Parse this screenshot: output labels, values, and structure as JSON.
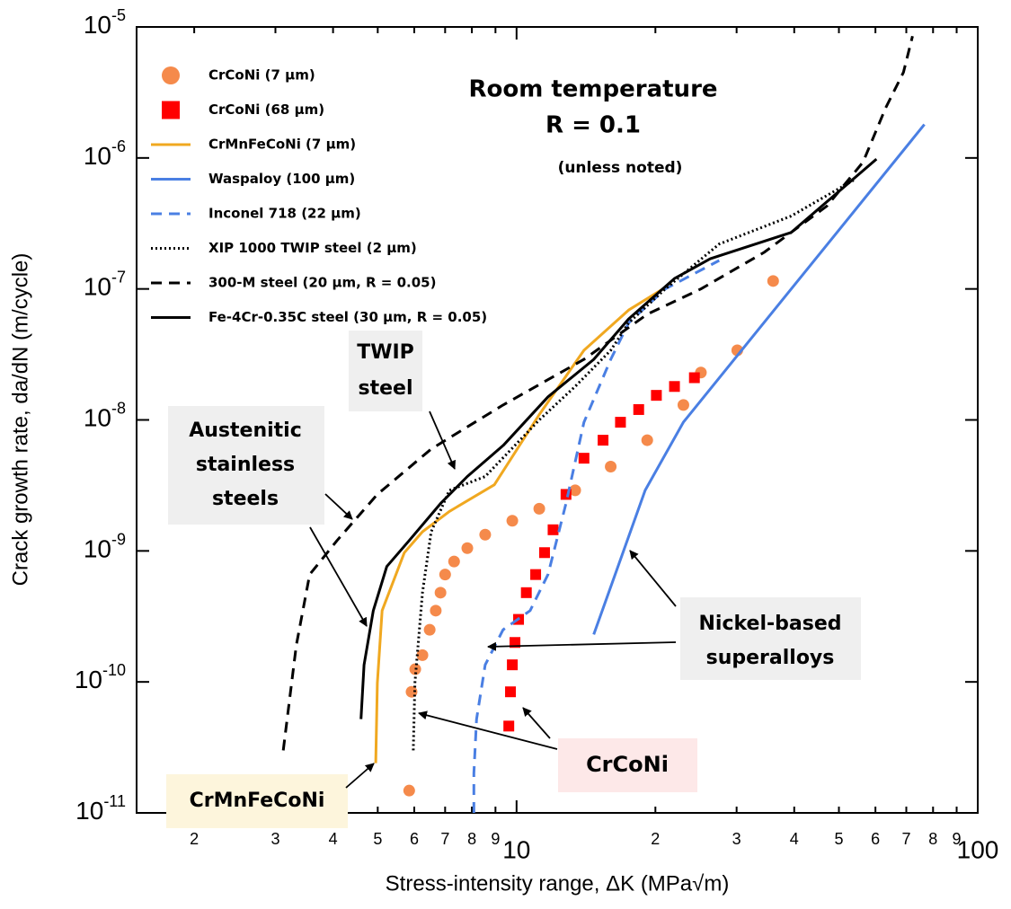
{
  "chart_data": {
    "type": "line",
    "x_label": "Stress-intensity range, ΔK (MPa√m)",
    "y_label": "Crack growth rate, da/dN (m/cycle)",
    "log_x": true,
    "log_y": true,
    "xlim": [
      1.5,
      100
    ],
    "ylim": [
      1e-11,
      1e-05
    ],
    "xticks": [
      2,
      3,
      4,
      5,
      6,
      7,
      8,
      9,
      10,
      {
        "value": 20,
        "label": "2"
      },
      {
        "value": 30,
        "label": "3"
      },
      {
        "value": 40,
        "label": "4"
      },
      {
        "value": 50,
        "label": "5"
      },
      {
        "value": 60,
        "label": "6"
      },
      {
        "value": 70,
        "label": "7"
      },
      {
        "value": 80,
        "label": "8"
      },
      {
        "value": 90,
        "label": "9"
      },
      100
    ],
    "yticks": [
      {
        "value": 1e-11,
        "label": "10",
        "exponent": "-11"
      },
      {
        "value": 1e-10,
        "label": "10",
        "exponent": "-10"
      },
      {
        "value": 1e-09,
        "label": "10",
        "exponent": "-9"
      },
      {
        "value": 1e-08,
        "label": "10",
        "exponent": "-8"
      },
      {
        "value": 1e-07,
        "label": "10",
        "exponent": "-7"
      },
      {
        "value": 1e-06,
        "label": "10",
        "exponent": "-6"
      },
      {
        "value": 1e-05,
        "label": "10",
        "exponent": "-5"
      }
    ],
    "legend": "upper left",
    "series": [
      {
        "name": "CrCoNi (7 µm)",
        "color": "#f58a4b",
        "kind": "scatter",
        "marker": "circle",
        "x": [
          5.85,
          5.92,
          6.03,
          6.25,
          6.48,
          6.68,
          6.84,
          7.0,
          7.32,
          7.82,
          8.55,
          9.79,
          11.2,
          13.4,
          16.0,
          19.2,
          23.0,
          25.1,
          30.1,
          36.0
        ],
        "values": [
          1.48e-11,
          8.4e-11,
          1.25e-10,
          1.6e-10,
          2.5e-10,
          3.5e-10,
          4.8e-10,
          6.6e-10,
          8.3e-10,
          1.05e-09,
          1.33e-09,
          1.7e-09,
          2.1e-09,
          2.9e-09,
          4.4e-09,
          7e-09,
          1.3e-08,
          2.3e-08,
          3.4e-08,
          1.15e-07
        ]
      },
      {
        "name": "CrCoNi (68 µm)",
        "color": "#ff0000",
        "kind": "scatter",
        "marker": "square",
        "x": [
          9.62,
          9.7,
          9.79,
          9.92,
          10.1,
          10.5,
          11.0,
          11.5,
          12.0,
          12.8,
          14.0,
          15.4,
          16.8,
          18.4,
          20.1,
          22.0,
          24.3
        ],
        "values": [
          4.6e-11,
          8.4e-11,
          1.35e-10,
          2e-10,
          3e-10,
          4.8e-10,
          6.6e-10,
          9.7e-10,
          1.45e-09,
          2.7e-09,
          5.1e-09,
          7e-09,
          9.6e-09,
          1.2e-08,
          1.54e-08,
          1.8e-08,
          2.1e-08
        ]
      },
      {
        "name": "CrMnFeCoNi (7 µm)",
        "color": "#f0a820",
        "kind": "line",
        "dash": "solid",
        "x": [
          4.95,
          4.99,
          5.11,
          5.71,
          6.25,
          7.15,
          8.95,
          11.2,
          14.0,
          17.5,
          21.7
        ],
        "values": [
          2.4e-11,
          9.8e-11,
          3.5e-10,
          9.7e-10,
          1.4e-09,
          2e-09,
          3.2e-09,
          1.1e-08,
          3.4e-08,
          6.9e-08,
          1.1e-07
        ]
      },
      {
        "name": "Waspaloy (100 µm)",
        "color": "#4a7fe3",
        "kind": "line",
        "dash": "solid",
        "x": [
          14.7,
          19.0,
          23.0,
          76.6
        ],
        "values": [
          2.3e-10,
          2.9e-09,
          9.6e-09,
          1.8e-06
        ]
      },
      {
        "name": "Inconel 718 (22 µm)",
        "color": "#4a7fe3",
        "kind": "line",
        "dash": "dashed",
        "x": [
          8.08,
          8.08,
          8.19,
          8.55,
          9.35,
          10.7,
          11.7,
          12.8,
          14.0,
          16.0,
          17.5,
          21.0,
          27.5
        ],
        "values": [
          1e-11,
          2e-11,
          5.2e-11,
          1.35e-10,
          2.5e-10,
          3.5e-10,
          6.6e-10,
          2.3e-09,
          9.6e-09,
          2.9e-08,
          5.5e-08,
          1e-07,
          1.65e-07
        ]
      },
      {
        "name": "XIP 1000 TWIP steel (2 µm)",
        "color": "#000000",
        "kind": "line",
        "dash": "dotted",
        "x": [
          5.97,
          6.02,
          6.25,
          6.53,
          7.15,
          8.55,
          11.2,
          13.4,
          16.0,
          17.5,
          21.0,
          27.5,
          39.4,
          53.9
        ],
        "values": [
          3e-11,
          9.8e-11,
          4.8e-10,
          1.4e-09,
          2.9e-09,
          3.7e-09,
          1e-08,
          1.8e-08,
          3.4e-08,
          5.5e-08,
          1e-07,
          2.2e-07,
          3.6e-07,
          6.8e-07
        ]
      },
      {
        "name": "300-M steel (20 µm, R = 0.05)",
        "color": "#000000",
        "kind": "line",
        "dash": "dashed",
        "x": [
          3.12,
          3.33,
          3.56,
          4.08,
          4.99,
          6.53,
          9.35,
          14.0,
          19.2,
          25.1,
          34.4,
          47.1,
          56.4,
          63.1,
          69.0,
          72.2
        ],
        "values": [
          3e-11,
          1.9e-10,
          6.6e-10,
          1.2e-09,
          2.7e-09,
          6e-09,
          1.3e-08,
          2.9e-08,
          6.4e-08,
          1e-07,
          1.9e-07,
          4.3e-07,
          9.3e-07,
          2.4e-06,
          4.5e-06,
          8.5e-06
        ]
      },
      {
        "name": "Fe-4Cr-0.35C steel (30 µm, R = 0.05)",
        "color": "#000000",
        "kind": "line",
        "dash": "solid",
        "x": [
          4.6,
          4.67,
          4.89,
          5.23,
          5.85,
          6.84,
          7.82,
          9.36,
          11.7,
          14.7,
          17.5,
          22.0,
          26.3,
          39.4,
          60.3
        ],
        "values": [
          5.2e-11,
          1.35e-10,
          3.5e-10,
          7.6e-10,
          1.2e-09,
          2.3e-09,
          3.7e-09,
          6.4e-09,
          1.5e-08,
          2.9e-08,
          5.9e-08,
          1.2e-07,
          1.7e-07,
          2.7e-07,
          9.8e-07
        ]
      }
    ],
    "annotations": [
      {
        "lines": [
          "Room temperature"
        ]
      },
      {
        "lines": [
          "R = 0.1"
        ]
      },
      {
        "lines": [
          "(unless noted)"
        ]
      },
      {
        "lines": [
          "TWIP",
          "steel"
        ],
        "background": "#efefef"
      },
      {
        "lines": [
          "Austenitic",
          "stainless",
          "steels"
        ],
        "background": "#efefef"
      },
      {
        "lines": [
          "Nickel-based",
          "superalloys"
        ],
        "background": "#efefef"
      },
      {
        "lines": [
          "CrCoNi"
        ],
        "background": "#fde8e8"
      },
      {
        "lines": [
          "CrMnFeCoNi"
        ],
        "background": "#fdf5dc"
      }
    ]
  }
}
